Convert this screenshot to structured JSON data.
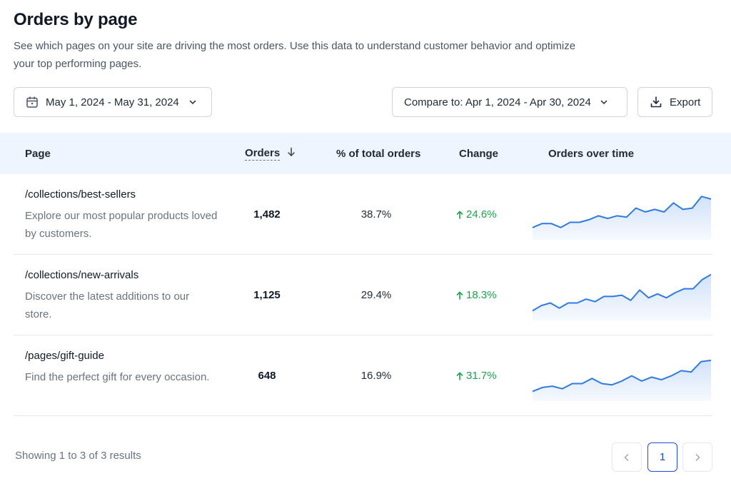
{
  "header": {
    "title": "Orders by page",
    "description": "See which pages on your site are driving the most orders. Use this data to understand customer behavior and optimize your top performing pages."
  },
  "toolbar": {
    "date_range": "May 1, 2024 - May 31, 2024",
    "compare_label": "Compare to: Apr 1, 2024 - Apr 30, 2024",
    "export_label": "Export"
  },
  "table": {
    "columns": {
      "page": "Page",
      "orders": "Orders",
      "pct": "% of total orders",
      "change": "Change",
      "trend": "Orders over time"
    },
    "sort": {
      "column": "Orders",
      "direction": "descending"
    },
    "rows": [
      {
        "path": "/collections/best-sellers",
        "description": "Explore our most popular products loved by customers.",
        "orders": "1,482",
        "pct": "38.7%",
        "change": "24.6%",
        "trend": [
          12,
          15,
          15,
          12,
          16,
          16,
          18,
          21,
          19,
          21,
          20,
          27,
          24,
          26,
          24,
          31,
          26,
          27,
          36,
          34
        ]
      },
      {
        "path": "/collections/new-arrivals",
        "description": "Discover the latest additions to our store.",
        "orders": "1,125",
        "pct": "29.4%",
        "change": "18.3%",
        "trend": [
          10,
          14,
          16,
          12,
          16,
          16,
          19,
          17,
          21,
          21,
          22,
          18,
          26,
          20,
          23,
          20,
          24,
          27,
          27,
          34,
          38
        ]
      },
      {
        "path": "/pages/gift-guide",
        "description": "Find the perfect gift for every occasion.",
        "orders": "648",
        "pct": "16.9%",
        "change": "31.7%",
        "trend": [
          10,
          13,
          14,
          12,
          16,
          16,
          20,
          16,
          15,
          18,
          22,
          18,
          21,
          19,
          22,
          26,
          25,
          33,
          34
        ]
      }
    ]
  },
  "footer": {
    "summary": "Showing 1 to 3 of 3 results",
    "current_page": "1"
  },
  "colors": {
    "accent": "#1d4ed8",
    "positive": "#16a34a",
    "sparkline": "#2f7be5",
    "header_bg": "#eef5ff"
  },
  "icons": [
    "calendar-icon",
    "chevron-down-icon",
    "download-icon",
    "arrow-down-icon",
    "arrow-up-icon",
    "chevron-left-icon",
    "chevron-right-icon"
  ]
}
